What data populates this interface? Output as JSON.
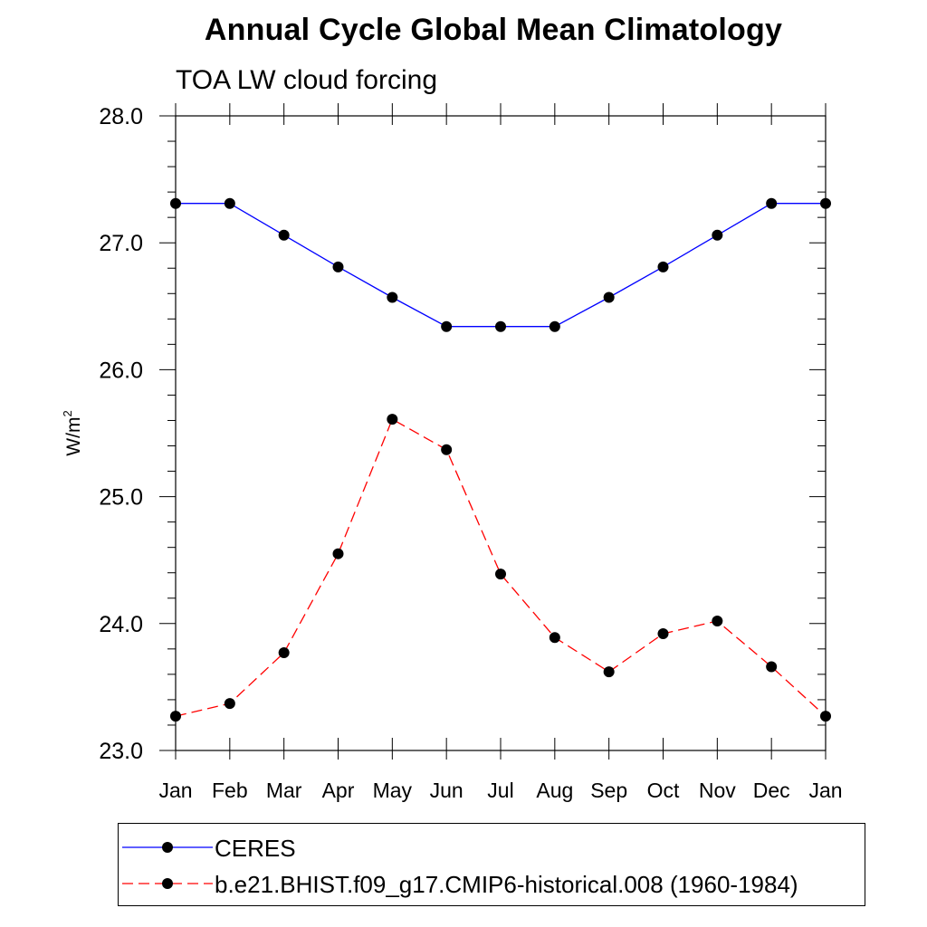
{
  "title": "Annual Cycle Global Mean Climatology",
  "subtitle": "TOA LW cloud forcing",
  "chart_data": {
    "type": "line",
    "ylabel": "W/m",
    "ylabel_superscript": "2",
    "ylim": [
      23.0,
      28.0
    ],
    "y_ticks": [
      "28.0",
      "27.0",
      "26.0",
      "25.0",
      "24.0",
      "23.0"
    ],
    "y_tick_values": [
      28,
      27,
      26,
      25,
      24,
      23
    ],
    "categories": [
      "Jan",
      "Feb",
      "Mar",
      "Apr",
      "May",
      "Jun",
      "Jul",
      "Aug",
      "Sep",
      "Oct",
      "Nov",
      "Dec",
      "Jan"
    ],
    "grid": false,
    "series": [
      {
        "name": "CERES",
        "color": "#0000ff",
        "dash": "solid",
        "values": [
          27.31,
          27.31,
          27.06,
          26.81,
          26.57,
          26.34,
          26.34,
          26.34,
          26.57,
          26.81,
          27.06,
          27.31,
          27.31
        ]
      },
      {
        "name": "b.e21.BHIST.f09_g17.CMIP6-historical.008 (1960-1984)",
        "color": "#ff0000",
        "dash": "dashed",
        "values": [
          23.27,
          23.37,
          23.77,
          24.55,
          25.61,
          25.37,
          24.39,
          23.89,
          23.62,
          23.92,
          24.02,
          23.66,
          23.27
        ]
      }
    ],
    "legend_position": "bottom"
  }
}
